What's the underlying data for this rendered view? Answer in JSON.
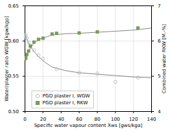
{
  "chart_data": {
    "type": "scatter",
    "xlabel": "Specific water vapour content Xws [gws/kga]",
    "ylabel": "Water/plaster ratio WGW [kgw/kgp]",
    "y2label": "Combined water RKW [M.-%]",
    "xlim": [
      0,
      140
    ],
    "xticks": [
      0,
      20,
      40,
      60,
      80,
      100,
      120,
      140
    ],
    "ylim": [
      0.5,
      0.65
    ],
    "yticks": [
      {
        "value": 0.5,
        "label": "0.50"
      },
      0.55,
      {
        "value": 0.6,
        "label": "0.60"
      },
      0.65
    ],
    "y2lim": [
      4,
      7
    ],
    "y2ticks": [
      4,
      5,
      6,
      7
    ],
    "grid": true,
    "legend": "lower left",
    "series": [
      {
        "type": "line",
        "color": "#888888",
        "x": [
          0,
          1,
          3,
          6,
          10,
          15,
          20,
          30,
          45,
          60,
          80,
          100,
          120,
          140
        ],
        "values": [
          0.608,
          0.606,
          0.6,
          0.592,
          0.585,
          0.578,
          0.572,
          0.563,
          0.558,
          0.555,
          0.553,
          0.551,
          0.549,
          0.548
        ]
      },
      {
        "type": "line",
        "color": "#888888",
        "axis": "y2",
        "x": [
          0,
          1,
          3,
          6,
          10,
          15,
          20,
          30,
          45,
          60,
          80,
          100,
          120,
          140
        ],
        "values": [
          5.5,
          5.54,
          5.65,
          5.8,
          5.95,
          6.04,
          6.09,
          6.17,
          6.21,
          6.22,
          6.25,
          6.28,
          6.31,
          6.37
        ]
      },
      {
        "name": "PGD plaster I, WGW",
        "type": "scatter",
        "marker": "circle",
        "color": "#b8b8b8",
        "x": [
          0,
          1,
          2,
          4,
          6,
          10,
          15,
          20,
          35,
          60,
          80,
          100,
          125
        ],
        "values": [
          0.608,
          0.608,
          0.604,
          0.598,
          0.592,
          0.587,
          0.58,
          0.575,
          0.56,
          0.555,
          0.554,
          0.542,
          0.548
        ]
      },
      {
        "name": "PGD plaster I, RKW",
        "type": "scatter",
        "marker": "square",
        "color": "#7a9a5a",
        "axis": "y2",
        "x": [
          0,
          1,
          2,
          4,
          6,
          10,
          15,
          20,
          30,
          35,
          60,
          80,
          125
        ],
        "values": [
          5.5,
          5.52,
          5.62,
          5.72,
          5.86,
          5.97,
          6.05,
          6.08,
          6.2,
          6.22,
          6.23,
          6.26,
          6.37
        ]
      }
    ]
  }
}
